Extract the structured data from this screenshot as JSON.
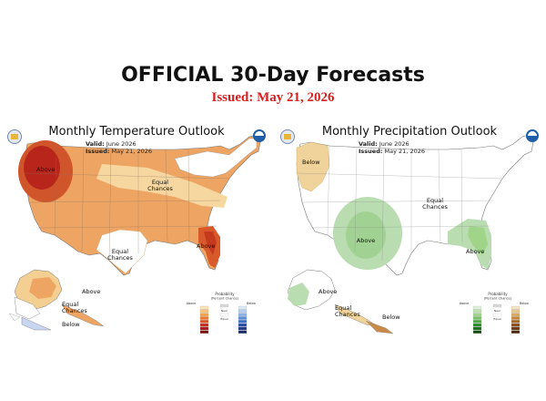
{
  "header": {
    "title": "OFFICIAL 30-Day Forecasts",
    "issued": "Issued: May 21, 2026"
  },
  "panels": [
    {
      "title": "Monthly Temperature Outlook",
      "valid_label": "Valid:",
      "valid": "June 2026",
      "issued_label": "Issued:",
      "issued": "May 21, 2026",
      "labels": {
        "above_nw": "Above",
        "equal_chances_central": "Equal\nChances",
        "equal_chances_south": "Equal\nChances",
        "above_se": "Above",
        "above_ak": "Above",
        "equal_chances_ak": "Equal\nChances",
        "below_ak": "Below"
      },
      "legend": {
        "header": "Probability\n(Percent Chance)",
        "left_col": [
          "Above\nNormal",
          "Leaning\nAbove",
          "Likely\nAbove"
        ],
        "mid": [
          "Near\nNormal",
          "Equal\nChances"
        ],
        "right_col": [
          "Below\nNormal",
          "Leaning\nBelow",
          "Likely\nBelow"
        ],
        "left_colors": [
          "#fde2b3",
          "#f9c47a",
          "#f4a24a",
          "#ec7a2a",
          "#de5524",
          "#c6301f",
          "#a81c1c",
          "#7d1010"
        ],
        "right_colors": [
          "#dbe8f8",
          "#b6d0f1",
          "#8bb3e6",
          "#5c91d8",
          "#3b6fc7",
          "#2a4ea8",
          "#213a8a",
          "#182a6b"
        ]
      }
    },
    {
      "title": "Monthly Precipitation Outlook",
      "valid_label": "Valid:",
      "valid": "June 2026",
      "issued_label": "Issued:",
      "issued": "May 21, 2026",
      "labels": {
        "below_nw": "Below",
        "equal_chances_central": "Equal\nChances",
        "above_sw": "Above",
        "above_se": "Above",
        "above_ak": "Above",
        "equal_chances_ak": "Equal\nChances",
        "below_ak": "Below"
      },
      "legend": {
        "header": "Probability\n(Percent Chance)",
        "left_col": [
          "Above\nNormal",
          "Leaning\nAbove",
          "Likely\nAbove"
        ],
        "mid": [
          "Near\nNormal",
          "Equal\nChances"
        ],
        "right_col": [
          "Below\nNormal",
          "Leaning\nBelow",
          "Likely\nBelow"
        ],
        "left_colors": [
          "#dff0d8",
          "#bfe3b0",
          "#9fd489",
          "#78c266",
          "#4fa844",
          "#2e8b2e",
          "#1e6e1e",
          "#0f4d0f"
        ],
        "right_colors": [
          "#f3e4c4",
          "#e8c88f",
          "#d9a85e",
          "#c4873b",
          "#a86a2a",
          "#8a501f",
          "#6c3a16",
          "#4e2810"
        ]
      }
    }
  ],
  "colors": {
    "title_red": "#d61f1f",
    "temp_light": "#f6d7a0",
    "temp_mid": "#ef9c52",
    "temp_strong": "#d85a2a",
    "temp_deep": "#b8251a",
    "precip_green": "#b9ddb0",
    "precip_green_mid": "#93ca85",
    "precip_brown": "#f0d39a",
    "blue_light": "#c9d6ef"
  },
  "icons": [
    "noaa-logo-icon",
    "nws-logo-icon"
  ]
}
